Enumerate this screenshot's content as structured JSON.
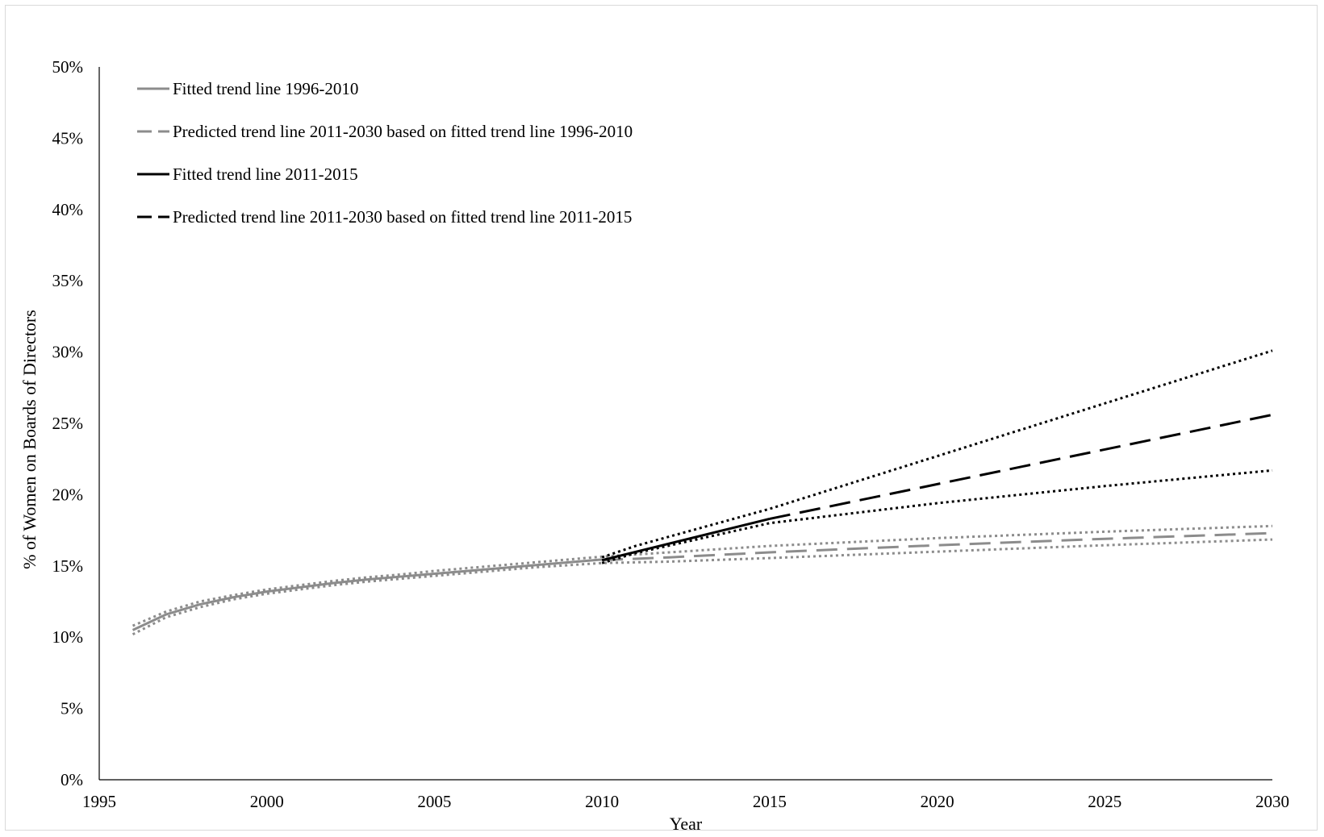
{
  "chart_data": {
    "type": "line",
    "title": "",
    "xlabel": "Year",
    "ylabel": "% of Women on Boards of Directors",
    "xlim": [
      1995,
      2030
    ],
    "ylim": [
      0,
      50
    ],
    "x_ticks": [
      "1995",
      "2000",
      "2005",
      "2010",
      "2015",
      "2020",
      "2025",
      "2030"
    ],
    "y_ticks": [
      "0%",
      "5%",
      "10%",
      "15%",
      "20%",
      "25%",
      "30%",
      "35%",
      "40%",
      "45%",
      "50%"
    ],
    "grid": false,
    "legend_position": "top-left",
    "legend": [
      {
        "label": "Fitted trend line 1996-2010",
        "color": "#8c8c8c",
        "style": "solid"
      },
      {
        "label": "Predicted trend line 2011-2030 based on fitted trend line 1996-2010",
        "color": "#8c8c8c",
        "style": "dashed"
      },
      {
        "label": "Fitted trend line 2011-2015",
        "color": "#000000",
        "style": "solid"
      },
      {
        "label": "Predicted trend line 2011-2030 based on fitted trend line 2011-2015",
        "color": "#000000",
        "style": "dashed"
      }
    ],
    "series": [
      {
        "name": "Fitted trend line 1996-2010",
        "color": "#8c8c8c",
        "style": "solid",
        "x": [
          1996,
          1997,
          1998,
          1999,
          2000,
          2001,
          2002,
          2003,
          2004,
          2005,
          2006,
          2007,
          2008,
          2009,
          2010
        ],
        "y": [
          10.5,
          11.6,
          12.3,
          12.8,
          13.2,
          13.5,
          13.8,
          14.05,
          14.25,
          14.45,
          14.65,
          14.85,
          15.05,
          15.25,
          15.45
        ]
      },
      {
        "name": "Predicted trend line 2011-2030 based on fitted trend line 1996-2010",
        "color": "#8c8c8c",
        "style": "dashed",
        "x": [
          2010,
          2012,
          2015,
          2020,
          2025,
          2030
        ],
        "y": [
          15.4,
          15.6,
          15.95,
          16.45,
          16.9,
          17.3
        ]
      },
      {
        "color": "#8c8c8c",
        "style": "dotted",
        "x": [
          1996,
          1997,
          1998,
          1999,
          2000,
          2001,
          2002,
          2003,
          2004,
          2005,
          2006,
          2007,
          2008,
          2009,
          2010,
          2012,
          2015,
          2020,
          2025,
          2030
        ],
        "y": [
          10.8,
          11.8,
          12.5,
          12.95,
          13.35,
          13.65,
          13.95,
          14.2,
          14.4,
          14.65,
          14.85,
          15.05,
          15.25,
          15.45,
          15.65,
          15.95,
          16.4,
          16.95,
          17.4,
          17.8
        ]
      },
      {
        "color": "#8c8c8c",
        "style": "dotted",
        "x": [
          1996,
          1997,
          1998,
          1999,
          2000,
          2001,
          2002,
          2003,
          2004,
          2005,
          2006,
          2007,
          2008,
          2009,
          2010,
          2012,
          2015,
          2020,
          2025,
          2030
        ],
        "y": [
          10.2,
          11.4,
          12.1,
          12.65,
          13.05,
          13.35,
          13.65,
          13.9,
          14.1,
          14.3,
          14.5,
          14.7,
          14.9,
          15.05,
          15.2,
          15.3,
          15.55,
          16.0,
          16.45,
          16.85
        ]
      },
      {
        "name": "Fitted trend line 2011-2015",
        "color": "#000000",
        "style": "solid",
        "x": [
          2010,
          2015
        ],
        "y": [
          15.4,
          18.3
        ]
      },
      {
        "name": "Predicted trend line 2011-2030 based on fitted trend line 2011-2015",
        "color": "#000000",
        "style": "dashed",
        "x": [
          2015,
          2030
        ],
        "y": [
          18.3,
          25.6
        ]
      },
      {
        "color": "#000000",
        "style": "dotted",
        "x": [
          2010,
          2011,
          2015,
          2020,
          2025,
          2030
        ],
        "y": [
          15.6,
          16.4,
          19.0,
          22.7,
          26.4,
          30.1
        ]
      },
      {
        "color": "#000000",
        "style": "dotted",
        "x": [
          2010,
          2011,
          2015,
          2020,
          2025,
          2030
        ],
        "y": [
          15.2,
          15.9,
          18.0,
          19.4,
          20.6,
          21.7
        ]
      }
    ]
  }
}
